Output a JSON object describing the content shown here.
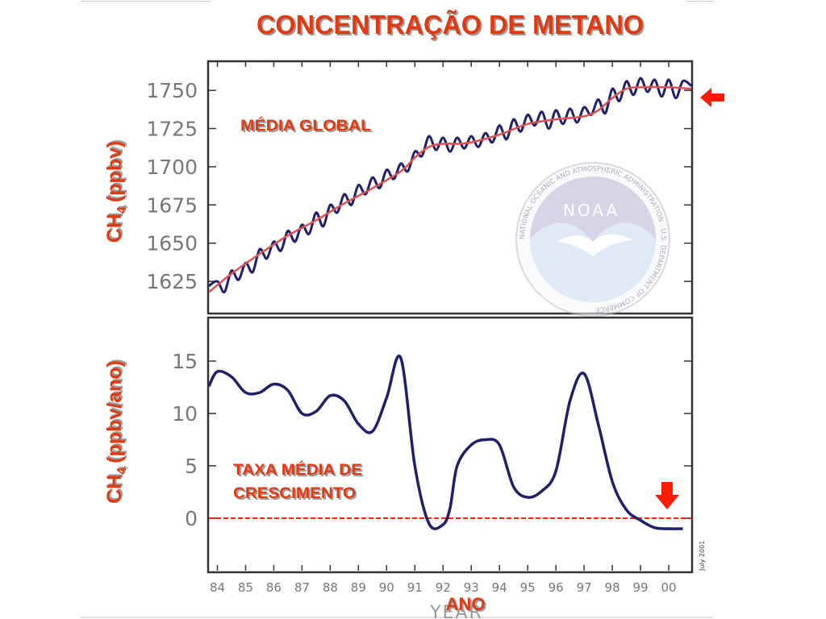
{
  "slide": {
    "title": "CONCENTRAÇÃO DE METANO",
    "colors": {
      "title": "#e03a12",
      "shadow": "#9b9b9b",
      "arrow": "#ff1a00",
      "series": "#1f1f6b",
      "trend": "#e05050",
      "zero_line": "#ff2200",
      "frame": "#333333"
    }
  },
  "logo": {
    "text": "NOAA",
    "ring_text": "NATIONAL OCEANIC AND ATMOSPHERIC ADMINISTRATION · U.S. DEPARTMENT OF COMMERCE"
  },
  "credit": "July 2001",
  "chart_data": [
    {
      "type": "line",
      "title": "",
      "label": "MÉDIA GLOBAL",
      "ylabel": "CH",
      "ylabel_sub": "4",
      "ylabel_unit": "(ppbv)",
      "ylim": [
        1605,
        1768
      ],
      "xlim": [
        1983.7,
        2000.8
      ],
      "yticks": [
        1625,
        1650,
        1675,
        1700,
        1725,
        1750
      ],
      "series": [
        {
          "role": "trend",
          "x": [
            1983.7,
            1984.5,
            1985.5,
            1986.5,
            1987.5,
            1988.5,
            1989.5,
            1990.5,
            1991.0,
            1991.5,
            1992.0,
            1992.5,
            1993.0,
            1994.0,
            1995.0,
            1996.0,
            1997.0,
            1997.5,
            1998.0,
            1998.5,
            1999.0,
            2000.0,
            2000.8
          ],
          "y": [
            1618,
            1630,
            1643,
            1655,
            1665,
            1676,
            1686,
            1697,
            1706,
            1713,
            1715,
            1715,
            1716,
            1721,
            1728,
            1731,
            1733,
            1737,
            1745,
            1751,
            1752,
            1752,
            1751
          ]
        },
        {
          "role": "monthly",
          "x": [
            1983.7,
            1984.0,
            1984.25,
            1984.5,
            1984.75,
            1985.0,
            1985.25,
            1985.5,
            1985.75,
            1986.0,
            1986.25,
            1986.5,
            1986.75,
            1987.0,
            1987.25,
            1987.5,
            1987.75,
            1988.0,
            1988.25,
            1988.5,
            1988.75,
            1989.0,
            1989.25,
            1989.5,
            1989.75,
            1990.0,
            1990.25,
            1990.5,
            1990.75,
            1991.0,
            1991.25,
            1991.5,
            1991.75,
            1992.0,
            1992.25,
            1992.5,
            1992.75,
            1993.0,
            1993.25,
            1993.5,
            1993.75,
            1994.0,
            1994.25,
            1994.5,
            1994.75,
            1995.0,
            1995.25,
            1995.5,
            1995.75,
            1996.0,
            1996.25,
            1996.5,
            1996.75,
            1997.0,
            1997.25,
            1997.5,
            1997.75,
            1998.0,
            1998.25,
            1998.5,
            1998.75,
            1999.0,
            1999.25,
            1999.5,
            1999.75,
            2000.0,
            2000.25,
            2000.5,
            2000.8
          ],
          "y": [
            1622,
            1625,
            1618,
            1632,
            1626,
            1637,
            1631,
            1646,
            1640,
            1651,
            1645,
            1658,
            1651,
            1662,
            1656,
            1670,
            1661,
            1675,
            1670,
            1682,
            1675,
            1688,
            1682,
            1693,
            1686,
            1698,
            1692,
            1702,
            1697,
            1710,
            1707,
            1720,
            1711,
            1719,
            1710,
            1719,
            1712,
            1720,
            1713,
            1722,
            1716,
            1727,
            1718,
            1731,
            1723,
            1734,
            1727,
            1736,
            1725,
            1737,
            1728,
            1738,
            1729,
            1739,
            1734,
            1744,
            1735,
            1751,
            1743,
            1756,
            1747,
            1758,
            1749,
            1757,
            1746,
            1757,
            1745,
            1756,
            1753
          ]
        }
      ]
    },
    {
      "type": "line",
      "title": "",
      "label_line1": "TAXA MÉDIA DE",
      "label_line2": "CRESCIMENTO",
      "ylabel": "CH",
      "ylabel_sub": "4",
      "ylabel_unit": "(ppbv/ano)",
      "xlabel": "ANO",
      "xlabel_under": "YEAR",
      "ylim": [
        -5,
        19
      ],
      "xlim": [
        1983.7,
        2000.8
      ],
      "yticks": [
        0,
        5,
        10,
        15
      ],
      "xticks": [
        1984,
        1985,
        1986,
        1987,
        1988,
        1989,
        1990,
        1991,
        1992,
        1993,
        1994,
        1995,
        1996,
        1997,
        1998,
        1999,
        2000
      ],
      "xtick_labels": [
        "84",
        "85",
        "86",
        "87",
        "88",
        "89",
        "90",
        "91",
        "92",
        "93",
        "94",
        "95",
        "96",
        "97",
        "98",
        "99",
        "00"
      ],
      "reference_line": 0,
      "series": [
        {
          "role": "growth_rate",
          "x": [
            1983.7,
            1984.0,
            1984.5,
            1985.0,
            1985.5,
            1986.0,
            1986.5,
            1987.0,
            1987.5,
            1988.0,
            1988.5,
            1989.0,
            1989.5,
            1990.0,
            1990.5,
            1991.0,
            1991.5,
            1992.0,
            1992.25,
            1992.5,
            1993.0,
            1993.5,
            1994.0,
            1994.5,
            1995.0,
            1995.5,
            1996.0,
            1996.5,
            1997.0,
            1997.5,
            1998.0,
            1998.5,
            1999.0,
            1999.5,
            2000.0,
            2000.5
          ],
          "y": [
            12.6,
            14.0,
            13.5,
            12.0,
            12.0,
            12.8,
            12.2,
            10.0,
            10.2,
            11.7,
            11.2,
            9.0,
            8.3,
            11.5,
            15.3,
            5.0,
            -0.5,
            -0.6,
            1.0,
            5.0,
            7.0,
            7.5,
            7.0,
            3.0,
            2.0,
            2.6,
            4.5,
            11.2,
            13.8,
            9.0,
            3.5,
            0.8,
            -0.2,
            -0.9,
            -1.0,
            -1.0
          ]
        }
      ]
    }
  ]
}
